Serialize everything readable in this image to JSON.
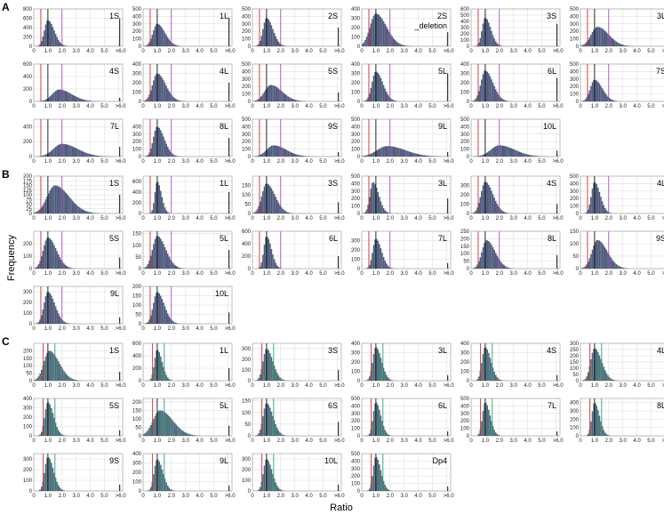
{
  "figure": {
    "sections": [
      "A",
      "B",
      "C"
    ],
    "ylabel": "Frequency",
    "xlabel": "Ratio"
  },
  "colors": {
    "bar": "#4f5b7c",
    "bar_fill_C": "#4c6e7a",
    "red_line": "#d22a2a",
    "black_line": "#111111",
    "purple_line": "#b048c8",
    "green_line": "#2aa37a",
    "grid": "#d8d8d8",
    "frame": "#9a9a9a"
  },
  "chart_data": [
    {
      "section": "A",
      "label": "1S",
      "type": "bar",
      "ymax": 800,
      "yticks": [
        0,
        200,
        400,
        600,
        800
      ],
      "peak": 1.0,
      "width": 0.45,
      "peakFreq": 560,
      "right": 600,
      "markers": {
        "red": 0.5,
        "black": 1.0,
        "purple": 2.0
      }
    },
    {
      "section": "A",
      "label": "1L",
      "type": "bar",
      "ymax": 500,
      "yticks": [
        0,
        100,
        200,
        300,
        400,
        500
      ],
      "peak": 1.0,
      "width": 0.55,
      "peakFreq": 300,
      "right": 380,
      "markers": {
        "red": 0.5,
        "black": 1.0,
        "purple": 2.0
      }
    },
    {
      "section": "A",
      "label": "2S",
      "type": "bar",
      "ymax": 500,
      "yticks": [
        0,
        100,
        200,
        300,
        400,
        500
      ],
      "peak": 1.0,
      "width": 0.45,
      "peakFreq": 380,
      "right": 250,
      "markers": {
        "red": 0.5,
        "black": 1.0,
        "purple": 2.0
      }
    },
    {
      "section": "A",
      "label": "2S",
      "sublabel": "deletion",
      "type": "bar",
      "ymax": 400,
      "yticks": [
        0,
        100,
        200,
        300,
        400
      ],
      "peak": 1.0,
      "width": 0.75,
      "peakFreq": 350,
      "right": 150,
      "markers": {
        "red": 0.5,
        "black": 1.0,
        "purple": 2.0
      }
    },
    {
      "section": "A",
      "label": "3S",
      "type": "bar",
      "ymax": 600,
      "yticks": [
        0,
        100,
        200,
        300,
        400,
        500,
        600
      ],
      "peak": 1.0,
      "width": 0.4,
      "peakFreq": 460,
      "right": 360,
      "markers": {
        "red": 0.5,
        "black": 1.0,
        "purple": 2.0
      }
    },
    {
      "section": "A",
      "label": "3L",
      "type": "bar",
      "ymax": 500,
      "yticks": [
        0,
        100,
        200,
        300,
        400,
        500
      ],
      "peak": 1.2,
      "width": 0.8,
      "peakFreq": 260,
      "right": 80,
      "markers": {
        "red": 0.5,
        "black": 1.0,
        "purple": 2.0
      }
    },
    {
      "section": "A",
      "label": "4S",
      "type": "bar",
      "ymax": 600,
      "yticks": [
        0,
        200,
        400,
        600
      ],
      "peak": 1.8,
      "width": 0.9,
      "peakFreq": 190,
      "right": 60,
      "markers": {
        "red": 0.5,
        "black": 1.0,
        "purple": 2.0
      }
    },
    {
      "section": "A",
      "label": "4L",
      "type": "bar",
      "ymax": 400,
      "yticks": [
        0,
        100,
        200,
        300,
        400
      ],
      "peak": 1.0,
      "width": 0.6,
      "peakFreq": 300,
      "right": 200,
      "markers": {
        "red": 0.5,
        "black": 1.0,
        "purple": 2.0
      }
    },
    {
      "section": "A",
      "label": "5S",
      "type": "bar",
      "ymax": 500,
      "yticks": [
        0,
        100,
        200,
        300,
        400,
        500
      ],
      "peak": 1.3,
      "width": 0.8,
      "peakFreq": 220,
      "right": 120,
      "markers": {
        "red": 0.5,
        "black": 1.0,
        "purple": 2.0
      }
    },
    {
      "section": "A",
      "label": "5L",
      "type": "bar",
      "ymax": 400,
      "yticks": [
        0,
        100,
        200,
        300,
        400
      ],
      "peak": 1.0,
      "width": 0.5,
      "peakFreq": 320,
      "right": 300,
      "markers": {
        "red": 0.5,
        "black": 1.0,
        "purple": 2.0
      }
    },
    {
      "section": "A",
      "label": "6L",
      "type": "bar",
      "ymax": 400,
      "yticks": [
        0,
        100,
        200,
        300,
        400
      ],
      "peak": 1.0,
      "width": 0.55,
      "peakFreq": 330,
      "right": 250,
      "markers": {
        "red": 0.5,
        "black": 1.0,
        "purple": 2.0
      }
    },
    {
      "section": "A",
      "label": "7S",
      "type": "bar",
      "ymax": 500,
      "yticks": [
        0,
        100,
        200,
        300,
        400,
        500
      ],
      "peak": 1.0,
      "width": 0.55,
      "peakFreq": 290,
      "right": 150,
      "markers": {
        "red": 0.5,
        "black": 1.0,
        "purple": 2.0
      }
    },
    {
      "section": "A",
      "label": "7L",
      "type": "bar",
      "ymax": 500,
      "yticks": [
        0,
        200,
        400
      ],
      "peak": 2.0,
      "width": 1.1,
      "peakFreq": 170,
      "right": 130,
      "markers": {
        "red": 0.5,
        "black": 1.0,
        "purple": 2.0
      }
    },
    {
      "section": "A",
      "label": "8L",
      "type": "bar",
      "ymax": 500,
      "yticks": [
        0,
        100,
        200,
        300,
        400
      ],
      "peak": 1.0,
      "width": 0.5,
      "peakFreq": 400,
      "right": 250,
      "markers": {
        "red": 0.5,
        "black": 1.0,
        "purple": 2.0
      }
    },
    {
      "section": "A",
      "label": "9S",
      "type": "bar",
      "ymax": 500,
      "yticks": [
        0,
        100,
        200,
        300,
        400,
        500
      ],
      "peak": 1.5,
      "width": 0.9,
      "peakFreq": 150,
      "right": 60,
      "markers": {
        "red": 0.5,
        "black": 1.0,
        "purple": 2.0
      }
    },
    {
      "section": "A",
      "label": "9L",
      "type": "bar",
      "ymax": 500,
      "yticks": [
        0,
        100,
        200,
        300,
        400,
        500
      ],
      "peak": 1.8,
      "width": 1.3,
      "peakFreq": 140,
      "right": 60,
      "markers": {
        "red": 0.5,
        "black": 1.0,
        "purple": 2.0
      }
    },
    {
      "section": "A",
      "label": "10L",
      "type": "bar",
      "ymax": 500,
      "yticks": [
        0,
        100,
        200,
        300,
        400,
        500
      ],
      "peak": 2.0,
      "width": 1.1,
      "peakFreq": 150,
      "right": 80,
      "markers": {
        "red": 0.5,
        "black": 1.0,
        "purple": 2.0
      }
    },
    {
      "section": "B",
      "label": "1S",
      "type": "bar",
      "ymax": 200,
      "yticks": [
        0,
        25,
        50,
        75,
        100,
        125,
        150,
        175,
        200
      ],
      "peak": 1.5,
      "width": 1.0,
      "peakFreq": 150,
      "right": 100,
      "markers": {
        "red": 0.5,
        "black": 1.0,
        "purple": 2.0
      }
    },
    {
      "section": "B",
      "label": "1L",
      "type": "bar",
      "ymax": 700,
      "yticks": [
        0,
        200,
        400,
        600
      ],
      "peak": 1.0,
      "width": 0.3,
      "peakFreq": 600,
      "right": 400,
      "markers": {
        "red": 0.5,
        "black": 1.0,
        "purple": 2.0
      }
    },
    {
      "section": "B",
      "label": "3S",
      "type": "bar",
      "ymax": 200,
      "yticks": [
        0,
        50,
        100,
        150
      ],
      "peak": 1.0,
      "width": 0.6,
      "peakFreq": 160,
      "right": 60,
      "markers": {
        "red": 0.5,
        "black": 1.0,
        "purple": 2.0
      }
    },
    {
      "section": "B",
      "label": "3L",
      "type": "bar",
      "ymax": 500,
      "yticks": [
        0,
        100,
        200,
        300,
        400,
        500
      ],
      "peak": 0.8,
      "width": 0.4,
      "peakFreq": 420,
      "right": 200,
      "markers": {
        "red": 0.5,
        "black": 1.0,
        "purple": 2.0
      }
    },
    {
      "section": "B",
      "label": "4S",
      "type": "bar",
      "ymax": 400,
      "yticks": [
        0,
        100,
        200,
        300
      ],
      "peak": 1.0,
      "width": 0.55,
      "peakFreq": 340,
      "right": 100,
      "markers": {
        "red": 0.5,
        "black": 1.0,
        "purple": 2.0
      }
    },
    {
      "section": "B",
      "label": "4L",
      "type": "bar",
      "ymax": 500,
      "yticks": [
        0,
        100,
        200,
        300,
        400,
        500
      ],
      "peak": 1.0,
      "width": 0.4,
      "peakFreq": 420,
      "right": 200,
      "markers": {
        "red": 0.5,
        "black": 1.0,
        "purple": 2.0
      }
    },
    {
      "section": "B",
      "label": "5S",
      "type": "bar",
      "ymax": 300,
      "yticks": [
        0,
        100,
        200
      ],
      "peak": 1.0,
      "width": 0.6,
      "peakFreq": 250,
      "right": 90,
      "markers": {
        "red": 0.5,
        "black": 1.0,
        "purple": 2.0
      }
    },
    {
      "section": "B",
      "label": "5L",
      "type": "bar",
      "ymax": 160,
      "yticks": [
        0,
        50,
        100,
        150
      ],
      "peak": 1.0,
      "width": 0.6,
      "peakFreq": 140,
      "right": 80,
      "markers": {
        "red": 0.5,
        "black": 1.0,
        "purple": 2.0
      }
    },
    {
      "section": "B",
      "label": "6L",
      "type": "bar",
      "ymax": 600,
      "yticks": [
        0,
        200,
        400,
        600
      ],
      "peak": 1.0,
      "width": 0.35,
      "peakFreq": 520,
      "right": 200,
      "markers": {
        "red": 0.5,
        "black": 1.0,
        "purple": 2.0
      }
    },
    {
      "section": "B",
      "label": "7L",
      "type": "bar",
      "ymax": 400,
      "yticks": [
        0,
        100,
        200,
        300
      ],
      "peak": 1.0,
      "width": 0.4,
      "peakFreq": 320,
      "right": 60,
      "markers": {
        "red": 0.5,
        "black": 1.0,
        "purple": 2.0
      }
    },
    {
      "section": "B",
      "label": "8L",
      "type": "bar",
      "ymax": 250,
      "yticks": [
        0,
        50,
        100,
        150,
        200,
        250
      ],
      "peak": 1.1,
      "width": 0.6,
      "peakFreq": 190,
      "right": 90,
      "markers": {
        "red": 0.5,
        "black": 1.0,
        "purple": 2.0
      }
    },
    {
      "section": "B",
      "label": "9S",
      "type": "bar",
      "ymax": 150,
      "yticks": [
        0,
        50,
        100,
        150
      ],
      "peak": 1.2,
      "width": 0.7,
      "peakFreq": 115,
      "right": 60,
      "markers": {
        "red": 0.5,
        "black": 1.0,
        "purple": 2.0
      }
    },
    {
      "section": "B",
      "label": "9L",
      "type": "bar",
      "ymax": 350,
      "yticks": [
        0,
        100,
        200,
        300
      ],
      "peak": 1.0,
      "width": 0.5,
      "peakFreq": 300,
      "right": 60,
      "markers": {
        "red": 0.5,
        "black": 1.0,
        "purple": 2.0
      }
    },
    {
      "section": "B",
      "label": "10L",
      "type": "bar",
      "ymax": 200,
      "yticks": [
        0,
        50,
        100,
        150,
        200
      ],
      "peak": 1.0,
      "width": 0.5,
      "peakFreq": 170,
      "right": 60,
      "markers": {
        "red": 0.5,
        "black": 1.0,
        "purple": 2.0
      }
    },
    {
      "section": "C",
      "label": "1S",
      "type": "bar",
      "ymax": 250,
      "yticks": [
        0,
        50,
        100,
        150,
        200
      ],
      "peak": 1.1,
      "width": 0.7,
      "peakFreq": 200,
      "right": 60,
      "markers": {
        "red": 0.67,
        "black": 1.0,
        "green": 1.5
      }
    },
    {
      "section": "C",
      "label": "1L",
      "type": "bar",
      "ymax": 600,
      "yticks": [
        0,
        200,
        400,
        600
      ],
      "peak": 1.0,
      "width": 0.35,
      "peakFreq": 500,
      "right": 200,
      "markers": {
        "red": 0.67,
        "black": 1.0,
        "green": 1.5
      }
    },
    {
      "section": "C",
      "label": "3S",
      "type": "bar",
      "ymax": 350,
      "yticks": [
        0,
        100,
        200,
        300
      ],
      "peak": 1.0,
      "width": 0.45,
      "peakFreq": 300,
      "right": 100,
      "markers": {
        "red": 0.67,
        "black": 1.0,
        "green": 1.5
      }
    },
    {
      "section": "C",
      "label": "3L",
      "type": "bar",
      "ymax": 400,
      "yticks": [
        0,
        100,
        200,
        300,
        400
      ],
      "peak": 1.0,
      "width": 0.4,
      "peakFreq": 360,
      "right": 60,
      "markers": {
        "red": 0.67,
        "black": 1.0,
        "green": 1.5
      }
    },
    {
      "section": "C",
      "label": "4S",
      "type": "bar",
      "ymax": 400,
      "yticks": [
        0,
        100,
        200,
        300,
        400
      ],
      "peak": 1.0,
      "width": 0.4,
      "peakFreq": 360,
      "right": 60,
      "markers": {
        "red": 0.67,
        "black": 1.0,
        "green": 1.5
      }
    },
    {
      "section": "C",
      "label": "4L",
      "type": "bar",
      "ymax": 300,
      "yticks": [
        0,
        50,
        100,
        150,
        200,
        250,
        300
      ],
      "peak": 1.0,
      "width": 0.5,
      "peakFreq": 260,
      "right": 60,
      "markers": {
        "red": 0.67,
        "black": 1.0,
        "green": 1.5
      }
    },
    {
      "section": "C",
      "label": "5S",
      "type": "bar",
      "ymax": 400,
      "yticks": [
        0,
        100,
        200,
        300,
        400
      ],
      "peak": 1.0,
      "width": 0.4,
      "peakFreq": 360,
      "right": 60,
      "markers": {
        "red": 0.67,
        "black": 1.0,
        "green": 1.5
      }
    },
    {
      "section": "C",
      "label": "5L",
      "type": "bar",
      "ymax": 220,
      "yticks": [
        0,
        50,
        100,
        150,
        200
      ],
      "peak": 1.2,
      "width": 0.9,
      "peakFreq": 150,
      "right": 60,
      "markers": {
        "red": 0.67,
        "black": 1.0,
        "green": 1.5
      }
    },
    {
      "section": "C",
      "label": "6S",
      "type": "bar",
      "ymax": 160,
      "yticks": [
        0,
        50,
        100,
        150
      ],
      "peak": 1.0,
      "width": 0.45,
      "peakFreq": 140,
      "right": 60,
      "markers": {
        "red": 0.67,
        "black": 1.0,
        "green": 1.5
      }
    },
    {
      "section": "C",
      "label": "6L",
      "type": "bar",
      "ymax": 500,
      "yticks": [
        0,
        100,
        200,
        300,
        400,
        500
      ],
      "peak": 1.0,
      "width": 0.35,
      "peakFreq": 450,
      "right": 60,
      "markers": {
        "red": 0.67,
        "black": 1.0,
        "green": 1.5
      }
    },
    {
      "section": "C",
      "label": "7L",
      "type": "bar",
      "ymax": 500,
      "yticks": [
        0,
        100,
        200,
        300,
        400,
        500
      ],
      "peak": 1.0,
      "width": 0.35,
      "peakFreq": 450,
      "right": 60,
      "markers": {
        "red": 0.67,
        "black": 1.0,
        "green": 1.5
      }
    },
    {
      "section": "C",
      "label": "8L",
      "type": "bar",
      "ymax": 450,
      "yticks": [
        0,
        100,
        200,
        300,
        400
      ],
      "peak": 1.0,
      "width": 0.35,
      "peakFreq": 400,
      "right": 60,
      "markers": {
        "red": 0.67,
        "black": 1.0,
        "green": 1.5
      }
    },
    {
      "section": "C",
      "label": "9S",
      "type": "bar",
      "ymax": 350,
      "yticks": [
        0,
        100,
        200,
        300
      ],
      "peak": 1.0,
      "width": 0.4,
      "peakFreq": 320,
      "right": 60,
      "markers": {
        "red": 0.67,
        "black": 1.0,
        "green": 1.5
      }
    },
    {
      "section": "C",
      "label": "9L",
      "type": "bar",
      "ymax": 400,
      "yticks": [
        0,
        100,
        200,
        300,
        400
      ],
      "peak": 1.0,
      "width": 0.4,
      "peakFreq": 340,
      "right": 60,
      "markers": {
        "red": 0.67,
        "black": 1.0,
        "green": 1.5
      }
    },
    {
      "section": "C",
      "label": "10L",
      "type": "bar",
      "ymax": 350,
      "yticks": [
        0,
        100,
        200,
        300
      ],
      "peak": 1.0,
      "width": 0.4,
      "peakFreq": 300,
      "right": 60,
      "markers": {
        "red": 0.67,
        "black": 1.0,
        "green": 1.5
      }
    },
    {
      "section": "C",
      "label": "Dp4",
      "type": "bar",
      "ymax": 500,
      "yticks": [
        0,
        100,
        200,
        300,
        400,
        500
      ],
      "peak": 1.0,
      "width": 0.35,
      "peakFreq": 460,
      "right": 60,
      "markers": {
        "red": 0.67,
        "black": 1.0,
        "green": 1.5
      }
    }
  ],
  "x_ticks": [
    "0",
    "1.0",
    "2.0",
    "3.0",
    "4.0",
    "5.0",
    ">6.0"
  ],
  "x_range": [
    0,
    6.3
  ]
}
